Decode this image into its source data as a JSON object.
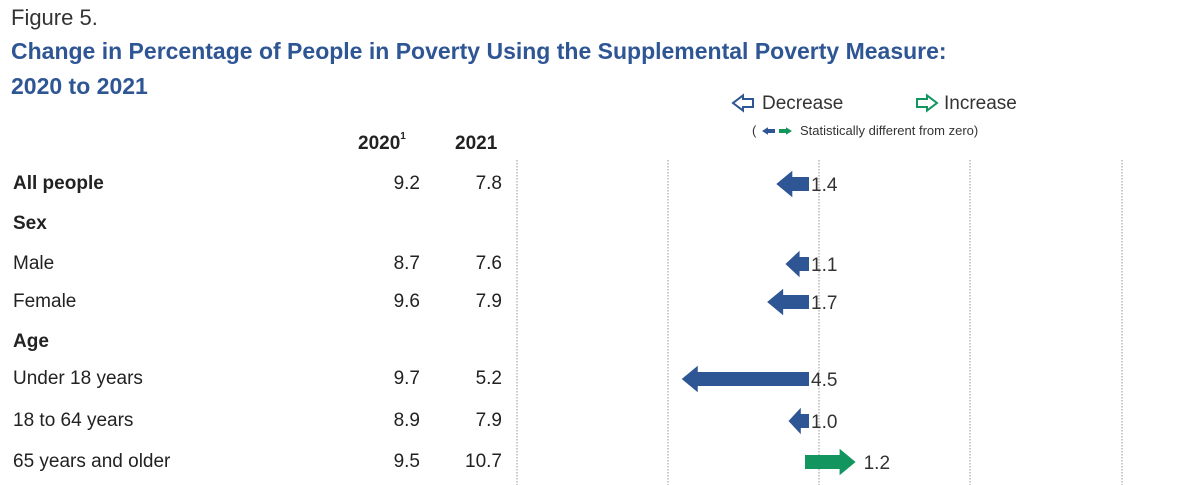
{
  "figure_label": "Figure 5.",
  "title_line1": "Change in Percentage of People in Poverty Using the Supplemental Poverty Measure:",
  "title_line2": "2020 to 2021",
  "legend": {
    "decrease": "Decrease",
    "increase": "Increase",
    "note_open": "(",
    "note_text": "Statistically different from zero)",
    "decrease_color": "#2e5594",
    "increase_color": "#13955f"
  },
  "columns": {
    "c2020": "2020",
    "c2020_sup": "1",
    "c2021": "2021"
  },
  "chart_data": {
    "type": "bar",
    "title": "Change in Percentage of People in Poverty Using the Supplemental Poverty Measure: 2020 to 2021",
    "xlabel": "",
    "ylabel": "",
    "xlim": [
      -5,
      5
    ],
    "grid": true,
    "rows": [
      {
        "label": "All people",
        "header": false,
        "bold": true,
        "v2020": "9.2",
        "v2021": "7.8",
        "change": -1.4,
        "change_label": "1.4"
      },
      {
        "label": "Sex",
        "header": true,
        "bold": true
      },
      {
        "label": "Male",
        "header": false,
        "bold": false,
        "v2020": "8.7",
        "v2021": "7.6",
        "change": -1.1,
        "change_label": "1.1"
      },
      {
        "label": "Female",
        "header": false,
        "bold": false,
        "v2020": "9.6",
        "v2021": "7.9",
        "change": -1.7,
        "change_label": "1.7"
      },
      {
        "label": "Age",
        "header": true,
        "bold": true
      },
      {
        "label": "Under 18 years",
        "header": false,
        "bold": false,
        "v2020": "9.7",
        "v2021": "5.2",
        "change": -4.5,
        "change_label": "4.5"
      },
      {
        "label": "18 to 64 years",
        "header": false,
        "bold": false,
        "v2020": "8.9",
        "v2021": "7.9",
        "change": -1.0,
        "change_label": "1.0"
      },
      {
        "label": "65 years and older",
        "header": false,
        "bold": false,
        "v2020": "9.5",
        "v2021": "10.7",
        "change": 1.2,
        "change_label": "1.2"
      }
    ]
  }
}
